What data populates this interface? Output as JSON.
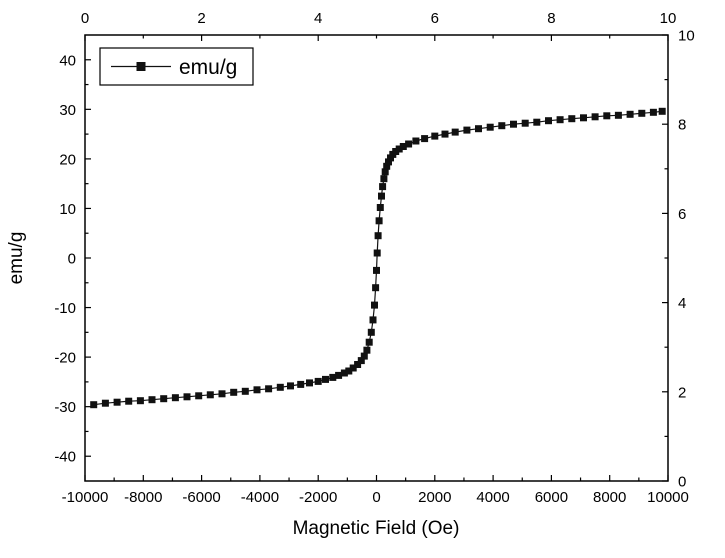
{
  "chart_data": {
    "type": "scatter",
    "title": "",
    "xlabel": "Magnetic Field (Oe)",
    "ylabel": "emu/g",
    "legend_label": "emu/g",
    "legend_position": "top-left",
    "grid": false,
    "xlim": [
      -10000,
      10000
    ],
    "ylim": [
      -45,
      45
    ],
    "x_ticks": [
      -10000,
      -8000,
      -6000,
      -4000,
      -2000,
      0,
      2000,
      4000,
      6000,
      8000,
      10000
    ],
    "y_ticks": [
      -40,
      -30,
      -20,
      -10,
      0,
      10,
      20,
      30,
      40
    ],
    "top_axis": {
      "range": [
        0,
        10
      ],
      "ticks": [
        0,
        2,
        4,
        6,
        8,
        10
      ]
    },
    "right_axis": {
      "range": [
        0,
        10
      ],
      "ticks": [
        0,
        2,
        4,
        6,
        8,
        10
      ]
    },
    "line_color": "#111111",
    "marker_color": "#111111",
    "marker_shape": "filled-square",
    "marker_size": 7,
    "series": [
      {
        "name": "emu/g",
        "points": [
          [
            -9700,
            -29.6
          ],
          [
            -9300,
            -29.3
          ],
          [
            -8900,
            -29.1
          ],
          [
            -8500,
            -28.9
          ],
          [
            -8100,
            -28.8
          ],
          [
            -7700,
            -28.6
          ],
          [
            -7300,
            -28.4
          ],
          [
            -6900,
            -28.2
          ],
          [
            -6500,
            -28.0
          ],
          [
            -6100,
            -27.8
          ],
          [
            -5700,
            -27.6
          ],
          [
            -5300,
            -27.4
          ],
          [
            -4900,
            -27.1
          ],
          [
            -4500,
            -26.9
          ],
          [
            -4100,
            -26.6
          ],
          [
            -3700,
            -26.4
          ],
          [
            -3300,
            -26.1
          ],
          [
            -2950,
            -25.8
          ],
          [
            -2600,
            -25.5
          ],
          [
            -2300,
            -25.2
          ],
          [
            -2000,
            -24.9
          ],
          [
            -1750,
            -24.5
          ],
          [
            -1500,
            -24.1
          ],
          [
            -1300,
            -23.7
          ],
          [
            -1100,
            -23.2
          ],
          [
            -950,
            -22.8
          ],
          [
            -800,
            -22.2
          ],
          [
            -650,
            -21.5
          ],
          [
            -520,
            -20.7
          ],
          [
            -420,
            -19.8
          ],
          [
            -330,
            -18.6
          ],
          [
            -250,
            -17.0
          ],
          [
            -180,
            -15.0
          ],
          [
            -120,
            -12.5
          ],
          [
            -70,
            -9.5
          ],
          [
            -30,
            -6.0
          ],
          [
            0,
            -2.5
          ],
          [
            25,
            1.0
          ],
          [
            55,
            4.5
          ],
          [
            90,
            7.5
          ],
          [
            130,
            10.2
          ],
          [
            170,
            12.5
          ],
          [
            210,
            14.4
          ],
          [
            255,
            16.0
          ],
          [
            300,
            17.4
          ],
          [
            350,
            18.5
          ],
          [
            410,
            19.4
          ],
          [
            480,
            20.2
          ],
          [
            560,
            20.9
          ],
          [
            660,
            21.5
          ],
          [
            780,
            22.0
          ],
          [
            920,
            22.5
          ],
          [
            1100,
            23.0
          ],
          [
            1350,
            23.6
          ],
          [
            1650,
            24.1
          ],
          [
            2000,
            24.6
          ],
          [
            2350,
            25.0
          ],
          [
            2700,
            25.4
          ],
          [
            3100,
            25.8
          ],
          [
            3500,
            26.1
          ],
          [
            3900,
            26.4
          ],
          [
            4300,
            26.7
          ],
          [
            4700,
            27.0
          ],
          [
            5100,
            27.2
          ],
          [
            5500,
            27.4
          ],
          [
            5900,
            27.7
          ],
          [
            6300,
            27.9
          ],
          [
            6700,
            28.1
          ],
          [
            7100,
            28.3
          ],
          [
            7500,
            28.5
          ],
          [
            7900,
            28.7
          ],
          [
            8300,
            28.8
          ],
          [
            8700,
            29.0
          ],
          [
            9100,
            29.2
          ],
          [
            9500,
            29.4
          ],
          [
            9800,
            29.6
          ]
        ]
      }
    ]
  }
}
